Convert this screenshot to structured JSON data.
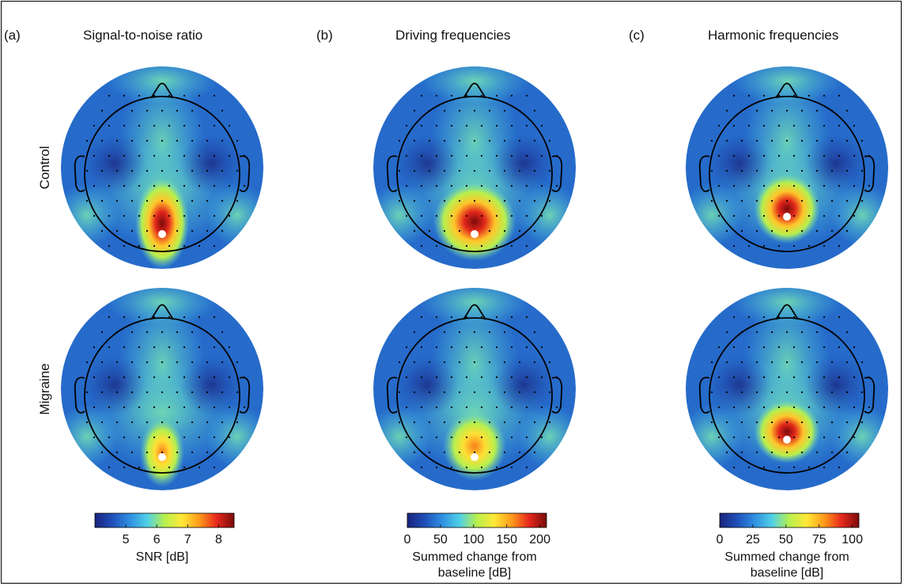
{
  "figure": {
    "colors": {
      "electrode_dot": "#000000",
      "peak_marker": "#ffffff",
      "head_outline": "#000000"
    },
    "colormap": [
      "#1a237e",
      "#1f4fb8",
      "#2f8fe0",
      "#4fd0e8",
      "#b7f04e",
      "#ffe838",
      "#ff9a1a",
      "#e6281c",
      "#7a0b0b"
    ]
  },
  "chart_data": [
    {
      "type": "heatmap",
      "panel": "(a)",
      "title": "Signal-to-noise ratio",
      "row_labels": [
        "Control",
        "Migraine"
      ],
      "colorbar": {
        "label": "SNR [dB]",
        "ticks": [
          "5",
          "6",
          "7",
          "8"
        ],
        "range": [
          4,
          8.5
        ]
      },
      "maps": [
        {
          "row": "Control",
          "peak_value": 8.2,
          "peak_location": "occipital midline"
        },
        {
          "row": "Migraine",
          "peak_value": 7.1,
          "peak_location": "occipital midline"
        }
      ]
    },
    {
      "type": "heatmap",
      "panel": "(b)",
      "title": "Driving frequencies",
      "row_labels": [
        "Control",
        "Migraine"
      ],
      "colorbar": {
        "label": "Summed change from baseline [dB]",
        "ticks": [
          "0",
          "50",
          "100",
          "150",
          "200"
        ],
        "range": [
          0,
          210
        ]
      },
      "maps": [
        {
          "row": "Control",
          "peak_value": 200,
          "peak_location": "occipital midline"
        },
        {
          "row": "Migraine",
          "peak_value": 140,
          "peak_location": "occipital midline"
        }
      ]
    },
    {
      "type": "heatmap",
      "panel": "(c)",
      "title": "Harmonic frequencies",
      "row_labels": [
        "Control",
        "Migraine"
      ],
      "colorbar": {
        "label": "Summed change from baseline [dB]",
        "ticks": [
          "0",
          "25",
          "50",
          "75",
          "100"
        ],
        "range": [
          0,
          105
        ]
      },
      "maps": [
        {
          "row": "Control",
          "peak_value": 100,
          "peak_location": "parieto-occipital midline"
        },
        {
          "row": "Migraine",
          "peak_value": 100,
          "peak_location": "parieto-occipital midline"
        }
      ]
    }
  ]
}
